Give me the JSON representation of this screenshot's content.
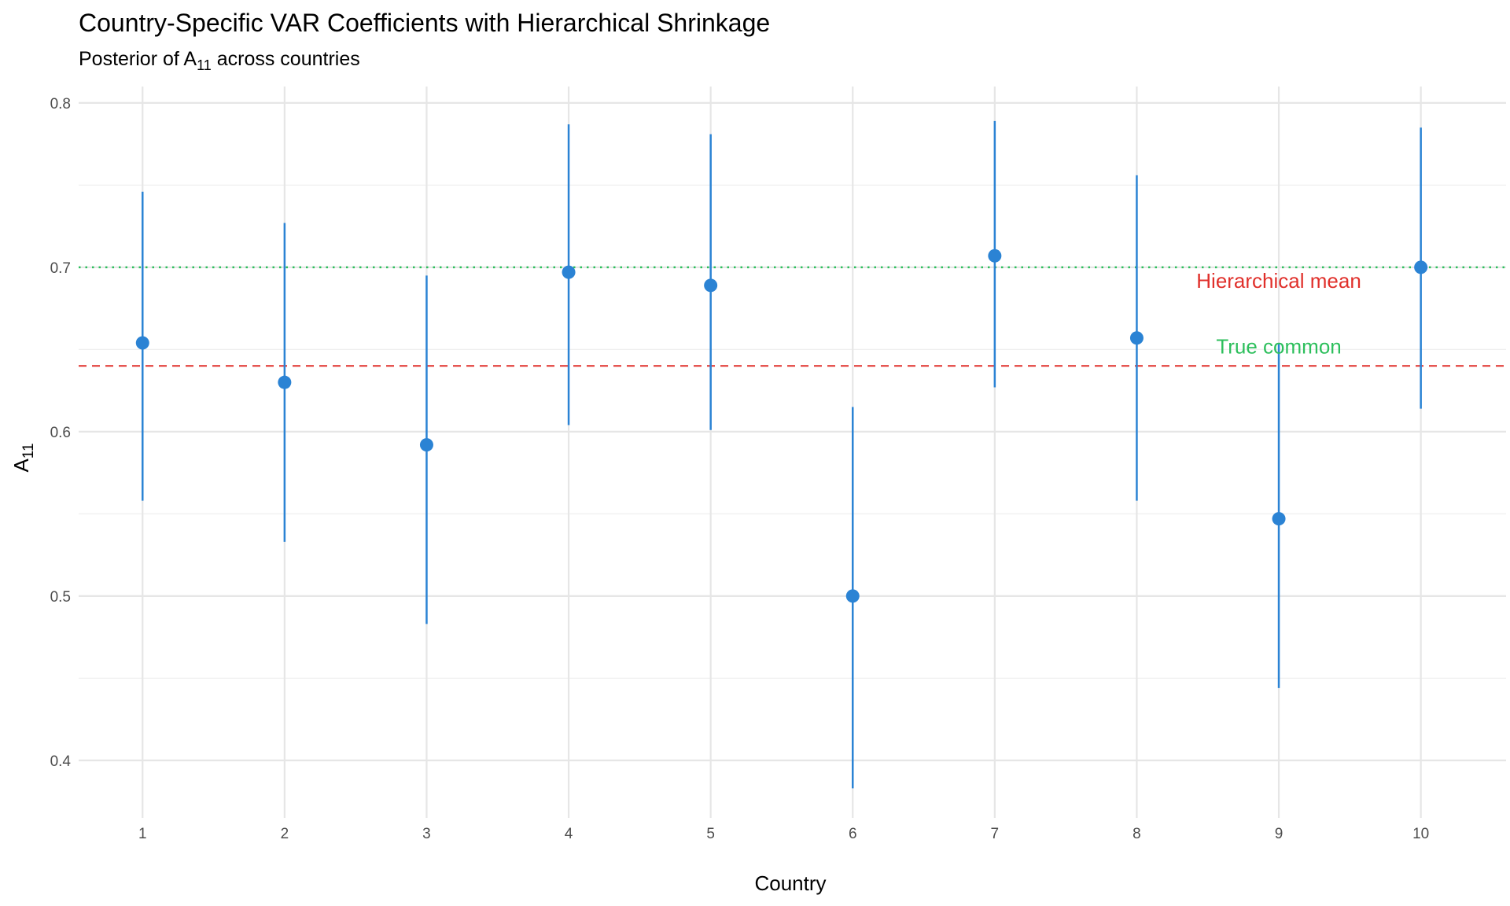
{
  "chart_data": {
    "type": "scatter",
    "title": "Country-Specific VAR Coefficients with Hierarchical Shrinkage",
    "subtitle": {
      "prefix": "Posterior of A",
      "sub": "11",
      "suffix": " across countries"
    },
    "xlabel": "Country",
    "ylabel": {
      "base": "A",
      "sub": "11"
    },
    "x": [
      1,
      2,
      3,
      4,
      5,
      6,
      7,
      8,
      9,
      10
    ],
    "y": [
      0.654,
      0.63,
      0.592,
      0.697,
      0.689,
      0.5,
      0.707,
      0.657,
      0.547,
      0.7
    ],
    "lower": [
      0.558,
      0.533,
      0.483,
      0.604,
      0.601,
      0.383,
      0.627,
      0.558,
      0.444,
      0.614
    ],
    "upper": [
      0.746,
      0.727,
      0.695,
      0.787,
      0.781,
      0.615,
      0.789,
      0.756,
      0.654,
      0.785
    ],
    "xticks": [
      "1",
      "2",
      "3",
      "4",
      "5",
      "6",
      "7",
      "8",
      "9",
      "10"
    ],
    "yticks": [
      0.4,
      0.5,
      0.6,
      0.7,
      0.8
    ],
    "ytick_labels": [
      "0.4",
      "0.5",
      "0.6",
      "0.7",
      "0.8"
    ],
    "xlim": [
      0.55,
      10.6
    ],
    "ylim": [
      0.365,
      0.81
    ],
    "grid": true,
    "point_color": "#2b83d4",
    "reference_lines": [
      {
        "value": 0.64,
        "style": "dashed",
        "color": "#e0302b"
      },
      {
        "value": 0.7,
        "style": "dotted",
        "color": "#2dbf5c"
      }
    ],
    "annotations": [
      {
        "text": "Hierarchical mean",
        "x": 9.0,
        "y": 0.6875,
        "color": "#e0302b"
      },
      {
        "text": "True common",
        "x": 9.0,
        "y": 0.6475,
        "color": "#2dbf5c"
      }
    ]
  }
}
